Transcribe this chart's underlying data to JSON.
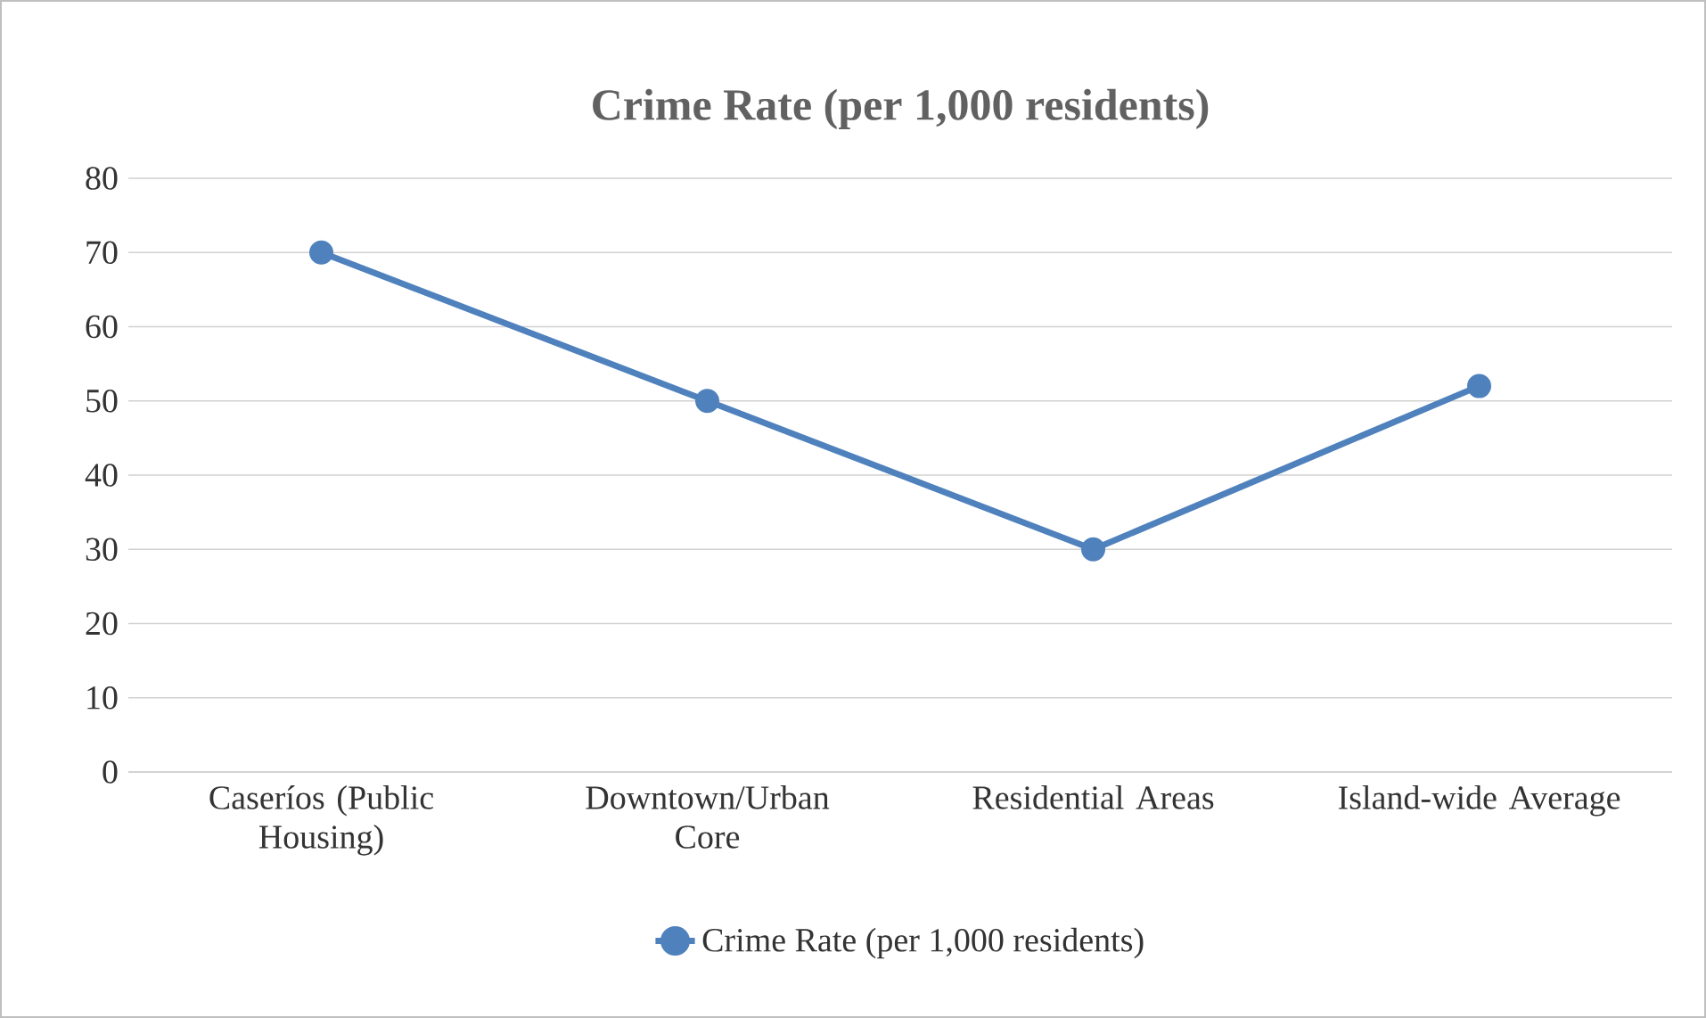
{
  "chart_data": {
    "type": "line",
    "title": "Crime Rate (per 1,000 residents)",
    "categories": [
      "Caseríos (Public Housing)",
      "Downtown/Urban Core",
      "Residential Areas",
      "Island-wide Average"
    ],
    "series": [
      {
        "name": "Crime Rate (per 1,000 residents)",
        "color": "#4f81bd",
        "values": [
          70,
          50,
          30,
          52
        ]
      }
    ],
    "ylim": [
      0,
      80
    ],
    "yticks": [
      0,
      10,
      20,
      30,
      40,
      50,
      60,
      70,
      80
    ],
    "grid": "y",
    "legend": "bottom",
    "marker": "circle",
    "line_style": "solid"
  }
}
